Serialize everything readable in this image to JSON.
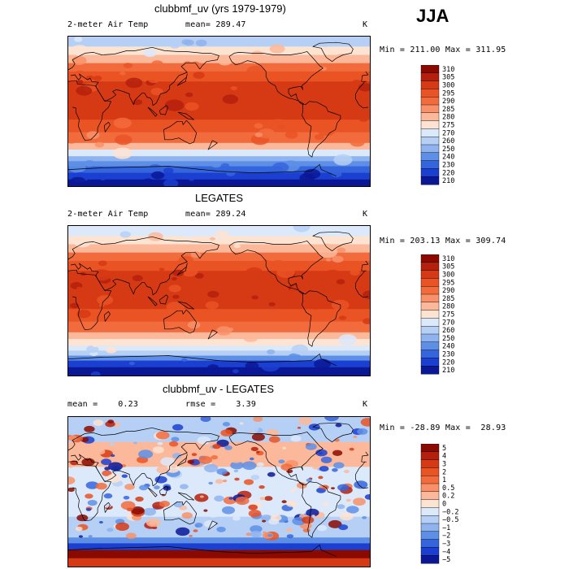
{
  "season": "JJA",
  "chart_data": [
    {
      "type": "heatmap",
      "title": "clubbmf_uv (yrs 1979-1979)",
      "left_label": "2-meter Air Temp",
      "stat_text": "mean= 289.47",
      "units": "K",
      "minmax": "Min = 211.00 Max = 311.95",
      "levels": [
        "310",
        "305",
        "300",
        "295",
        "290",
        "285",
        "280",
        "275",
        "270",
        "260",
        "250",
        "240",
        "230",
        "220",
        "210"
      ],
      "level_colors": [
        "#8b0a00",
        "#b5200c",
        "#d63a14",
        "#ea5324",
        "#f26b3c",
        "#f8906a",
        "#fbb89a",
        "#fde3d2",
        "#dce9fb",
        "#b6d0f5",
        "#8fb3ee",
        "#5e8fe6",
        "#3565dd",
        "#1b3fd0",
        "#0a1896"
      ],
      "band_profile": [
        {
          "lat_top": 90,
          "lat_bot": 78,
          "level": 9
        },
        {
          "lat_top": 78,
          "lat_bot": 68,
          "level": 7
        },
        {
          "lat_top": 68,
          "lat_bot": 58,
          "level": 6
        },
        {
          "lat_top": 58,
          "lat_bot": 48,
          "level": 4
        },
        {
          "lat_top": 48,
          "lat_bot": 36,
          "level": 3
        },
        {
          "lat_top": 36,
          "lat_bot": 10,
          "level": 2
        },
        {
          "lat_top": 10,
          "lat_bot": -10,
          "level": 2
        },
        {
          "lat_top": -10,
          "lat_bot": -25,
          "level": 3
        },
        {
          "lat_top": -25,
          "lat_bot": -38,
          "level": 4
        },
        {
          "lat_top": -38,
          "lat_bot": -46,
          "level": 6
        },
        {
          "lat_top": -46,
          "lat_bot": -54,
          "level": 8
        },
        {
          "lat_top": -54,
          "lat_bot": -60,
          "level": 10
        },
        {
          "lat_top": -60,
          "lat_bot": -66,
          "level": 11
        },
        {
          "lat_top": -66,
          "lat_bot": -74,
          "level": 12
        },
        {
          "lat_top": -74,
          "lat_bot": -82,
          "level": 13
        },
        {
          "lat_top": -82,
          "lat_bot": -90,
          "level": 14
        }
      ]
    },
    {
      "type": "heatmap",
      "title": "LEGATES",
      "left_label": "2-meter Air Temp",
      "stat_text": "mean= 289.24",
      "units": "K",
      "minmax": "Min = 203.13 Max = 309.74",
      "levels": [
        "310",
        "305",
        "300",
        "295",
        "290",
        "285",
        "280",
        "275",
        "270",
        "260",
        "250",
        "240",
        "230",
        "220",
        "210"
      ],
      "level_colors": [
        "#8b0a00",
        "#b5200c",
        "#d63a14",
        "#ea5324",
        "#f26b3c",
        "#f8906a",
        "#fbb89a",
        "#fde3d2",
        "#dce9fb",
        "#b6d0f5",
        "#8fb3ee",
        "#5e8fe6",
        "#3565dd",
        "#1b3fd0",
        "#0a1896"
      ],
      "band_profile": [
        {
          "lat_top": 90,
          "lat_bot": 78,
          "level": 8
        },
        {
          "lat_top": 78,
          "lat_bot": 68,
          "level": 7
        },
        {
          "lat_top": 68,
          "lat_bot": 58,
          "level": 6
        },
        {
          "lat_top": 58,
          "lat_bot": 48,
          "level": 4
        },
        {
          "lat_top": 48,
          "lat_bot": 36,
          "level": 3
        },
        {
          "lat_top": 36,
          "lat_bot": 10,
          "level": 2
        },
        {
          "lat_top": 10,
          "lat_bot": -10,
          "level": 2
        },
        {
          "lat_top": -10,
          "lat_bot": -25,
          "level": 3
        },
        {
          "lat_top": -25,
          "lat_bot": -38,
          "level": 4
        },
        {
          "lat_top": -38,
          "lat_bot": -46,
          "level": 6
        },
        {
          "lat_top": -46,
          "lat_bot": -54,
          "level": 7
        },
        {
          "lat_top": -54,
          "lat_bot": -60,
          "level": 8
        },
        {
          "lat_top": -60,
          "lat_bot": -66,
          "level": 9
        },
        {
          "lat_top": -66,
          "lat_bot": -72,
          "level": 11
        },
        {
          "lat_top": -72,
          "lat_bot": -80,
          "level": 13
        },
        {
          "lat_top": -80,
          "lat_bot": -90,
          "level": 14
        }
      ]
    },
    {
      "type": "heatmap",
      "title": "clubbmf_uv - LEGATES",
      "left_label": "mean =    0.23",
      "stat_text": "rmse =    3.39",
      "units": "K",
      "minmax": "Min = -28.89 Max =  28.93",
      "levels": [
        "5",
        "4",
        "3",
        "2",
        "1",
        "0.5",
        "0.2",
        "0",
        "−0.2",
        "−0.5",
        "−1",
        "−2",
        "−3",
        "−4",
        "−5"
      ],
      "level_colors": [
        "#8b0a00",
        "#b5200c",
        "#d63a14",
        "#ea5324",
        "#f26b3c",
        "#f8906a",
        "#fbb89a",
        "#fde3d2",
        "#dce9fb",
        "#b6d0f5",
        "#8fb3ee",
        "#5e8fe6",
        "#3565dd",
        "#1b3fd0",
        "#0a1896"
      ],
      "band_profile": [
        {
          "lat_top": 90,
          "lat_bot": 60,
          "level": 9
        },
        {
          "lat_top": 60,
          "lat_bot": 30,
          "level": 6
        },
        {
          "lat_top": 30,
          "lat_bot": -30,
          "level": 8
        },
        {
          "lat_top": -30,
          "lat_bot": -55,
          "level": 9
        },
        {
          "lat_top": -55,
          "lat_bot": -62,
          "level": 11
        },
        {
          "lat_top": -62,
          "lat_bot": -70,
          "level": 13
        },
        {
          "lat_top": -70,
          "lat_bot": -80,
          "level": 0
        },
        {
          "lat_top": -80,
          "lat_bot": -90,
          "level": 2
        }
      ]
    }
  ]
}
